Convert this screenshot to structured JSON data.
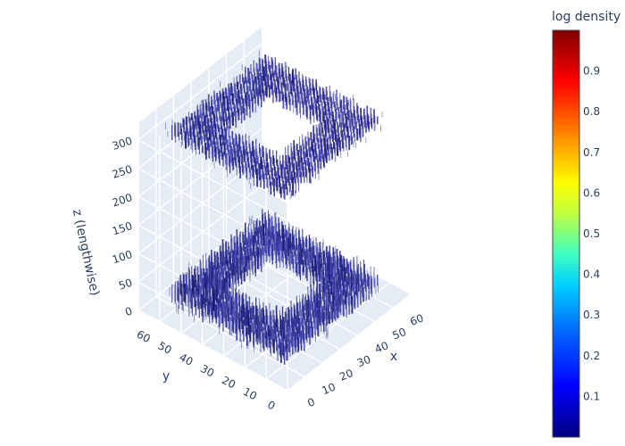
{
  "chart_data": {
    "type": "volume",
    "description_visible": "3D volume rendering of a hollow square-frame (annular) structure at two z-levels",
    "axes": {
      "x": {
        "label": "x",
        "range": [
          0,
          70
        ],
        "ticks": [
          0,
          10,
          20,
          30,
          40,
          50,
          60
        ]
      },
      "y": {
        "label": "y",
        "range": [
          0,
          70
        ],
        "ticks": [
          0,
          10,
          20,
          30,
          40,
          50,
          60
        ]
      },
      "z": {
        "label": "z (lengthwise)",
        "range": [
          0,
          330
        ],
        "ticks": [
          0,
          50,
          100,
          150,
          200,
          250,
          300
        ]
      }
    },
    "structures": [
      {
        "name": "lower frame",
        "z_range": [
          5,
          55
        ],
        "outer": [
          8,
          62
        ],
        "inner": [
          22,
          48
        ]
      },
      {
        "name": "upper frame",
        "z_range": [
          295,
          330
        ],
        "outer": [
          8,
          62
        ],
        "inner": [
          22,
          48
        ]
      }
    ],
    "colorbar": {
      "title": "log density",
      "range": [
        0,
        1
      ],
      "ticks": [
        0.1,
        0.2,
        0.3,
        0.4,
        0.5,
        0.6,
        0.7,
        0.8,
        0.9
      ],
      "colorscale": [
        "#000080",
        "#0000ff",
        "#0080ff",
        "#00ffff",
        "#80ff80",
        "#ffff00",
        "#ff8000",
        "#ff0000",
        "#800000"
      ]
    },
    "grid": true,
    "background_color": "#e5ecf6"
  }
}
